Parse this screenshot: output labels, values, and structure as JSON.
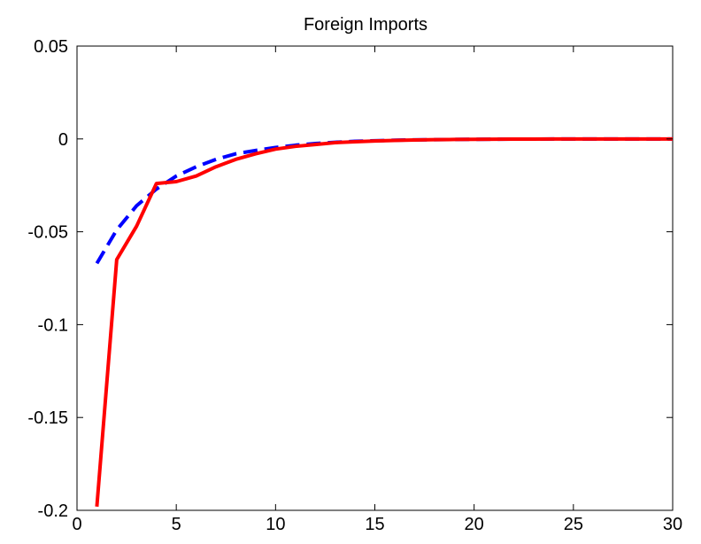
{
  "chart_data": {
    "type": "line",
    "title": "Foreign Imports",
    "xlabel": "",
    "ylabel": "",
    "xlim": [
      0,
      30
    ],
    "ylim": [
      -0.2,
      0.05
    ],
    "xticks": [
      0,
      5,
      10,
      15,
      20,
      25,
      30
    ],
    "xtick_labels": [
      "0",
      "5",
      "10",
      "15",
      "20",
      "25",
      "30"
    ],
    "yticks": [
      -0.2,
      -0.15,
      -0.1,
      -0.05,
      0,
      0.05
    ],
    "ytick_labels": [
      "-0.2",
      "-0.15",
      "-0.1",
      "-0.05",
      "0",
      "0.05"
    ],
    "grid": false,
    "legend": "none",
    "series": [
      {
        "style": "dashed",
        "color": "#0000ff",
        "x": [
          1,
          2,
          3,
          4,
          5,
          6,
          7,
          8,
          9,
          10,
          11,
          12,
          13,
          14,
          15,
          16,
          17,
          18,
          19,
          20,
          21,
          22,
          23,
          24,
          25,
          26,
          27,
          28,
          29,
          30
        ],
        "values": [
          -0.067,
          -0.049,
          -0.036,
          -0.027,
          -0.02,
          -0.015,
          -0.011,
          -0.008,
          -0.0062,
          -0.0046,
          -0.0034,
          -0.0025,
          -0.0018,
          -0.0013,
          -0.001,
          -0.0007,
          -0.0005,
          -0.0004,
          -0.0003,
          -0.0002,
          -0.00015,
          -0.0001,
          -8e-05,
          -6e-05,
          -4e-05,
          -3e-05,
          -2e-05,
          -2e-05,
          -1e-05,
          -1e-05
        ]
      },
      {
        "style": "solid",
        "color": "#ff0000",
        "x": [
          1,
          2,
          3,
          4,
          5,
          6,
          7,
          8,
          9,
          10,
          11,
          12,
          13,
          14,
          15,
          16,
          17,
          18,
          19,
          20,
          21,
          22,
          23,
          24,
          25,
          26,
          27,
          28,
          29,
          30
        ],
        "values": [
          -0.198,
          -0.065,
          -0.047,
          -0.024,
          -0.023,
          -0.02,
          -0.015,
          -0.011,
          -0.008,
          -0.0055,
          -0.004,
          -0.003,
          -0.002,
          -0.0015,
          -0.0011,
          -0.0008,
          -0.0006,
          -0.0004,
          -0.0003,
          -0.0002,
          -0.00015,
          -0.0001,
          -8e-05,
          -6e-05,
          -5e-05,
          -4e-05,
          -3e-05,
          -2e-05,
          -1e-05,
          -1e-05
        ]
      }
    ]
  }
}
